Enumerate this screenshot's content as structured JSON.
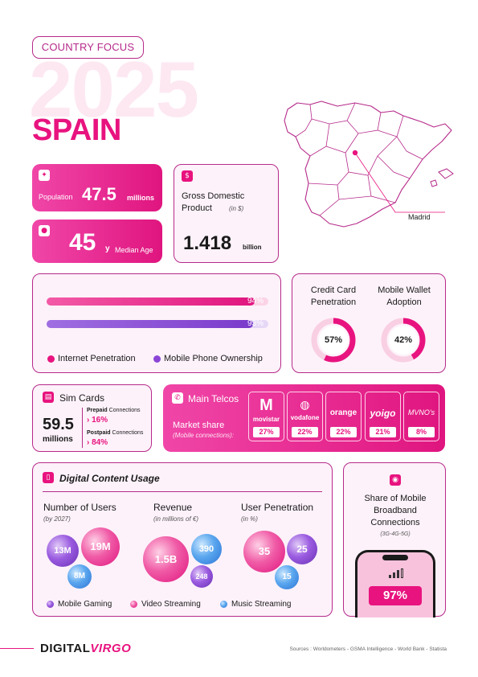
{
  "header": {
    "tag": "COUNTRY FOCUS",
    "year": "2025",
    "country": "SPAIN"
  },
  "population": {
    "label": "Population",
    "value": "47.5",
    "unit": "millions",
    "icon": "person-icon"
  },
  "median_age": {
    "value": "45",
    "unit": "y",
    "label": "Median Age",
    "icon": "head-icon"
  },
  "gdp": {
    "title": "Gross Domestic Product",
    "unit_note": "(in $)",
    "value": "1.418",
    "unit": "billion",
    "icon": "money-icon"
  },
  "map": {
    "city_label": "Madrid"
  },
  "penetration": {
    "bars": [
      {
        "name": "Internet Penetration",
        "value": 94,
        "label": "94%",
        "color": "#e8137f"
      },
      {
        "name": "Mobile Phone Ownership",
        "value": 93,
        "label": "93%",
        "color": "#8b45d6"
      }
    ]
  },
  "gauges": [
    {
      "title_line1": "Credit Card",
      "title_line2": "Penetration",
      "value": 57,
      "label": "57%"
    },
    {
      "title_line1": "Mobile Wallet",
      "title_line2": "Adoption",
      "value": 42,
      "label": "42%"
    }
  ],
  "sim_cards": {
    "title": "Sim Cards",
    "value": "59.5",
    "unit": "millions",
    "prepaid_label": "Prepaid",
    "prepaid_suffix": "Connections",
    "prepaid_value": "16%",
    "postpaid_label": "Postpaid",
    "postpaid_suffix": "Connections",
    "postpaid_value": "84%"
  },
  "telcos": {
    "title": "Main Telcos",
    "subtitle": "Market share",
    "note": "(Mobile connections):",
    "items": [
      {
        "name": "movistar",
        "share": "27%"
      },
      {
        "name": "vodafone",
        "share": "22%"
      },
      {
        "name": "orange",
        "share": "22%"
      },
      {
        "name": "yoigo",
        "share": "21%"
      },
      {
        "name": "MVNO's",
        "share": "8%"
      }
    ]
  },
  "digital": {
    "title": "Digital Content Usage",
    "users": {
      "title": "Number of Users",
      "note": "(by 2027)",
      "gaming": "13M",
      "video": "19M",
      "music": "8M"
    },
    "revenue": {
      "title": "Revenue",
      "note": "(in millions of €)",
      "video": "1.5B",
      "music": "390",
      "gaming": "248"
    },
    "penetration": {
      "title": "User Penetration",
      "note": "(in %)",
      "video": "35",
      "gaming": "25",
      "music": "15"
    },
    "legend": [
      "Mobile Gaming",
      "Video Streaming",
      "Music Streaming"
    ],
    "colors": {
      "gaming": "#8b45d6",
      "video": "#e8137f",
      "music": "#3b8be6"
    }
  },
  "broadband": {
    "title_line1": "Share of Mobile",
    "title_line2": "Broadband",
    "title_line3": "Connections",
    "note": "(3G-4G-5G)",
    "value": "97%"
  },
  "footer": {
    "brand_a": "DIGITAL",
    "brand_b": "VIRGO",
    "sources": "Sources : Worldometers - GSMA Intelligence - World Bank - Statista"
  }
}
